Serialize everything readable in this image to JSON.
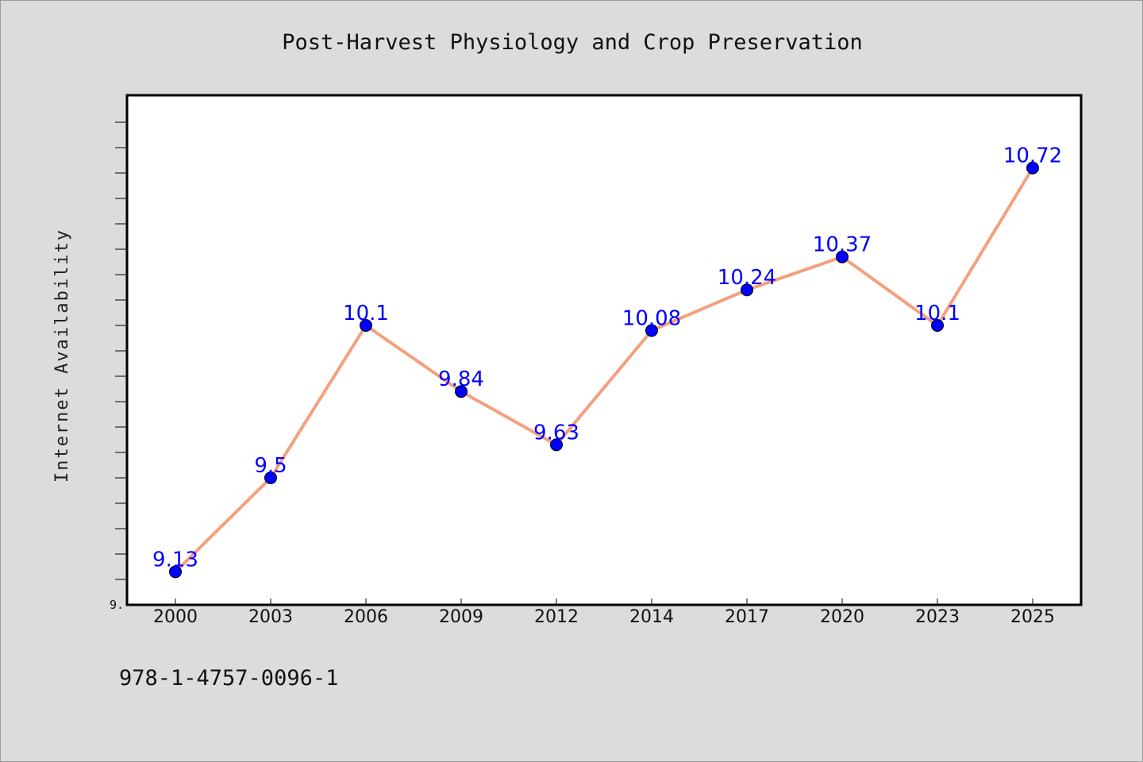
{
  "chart_data": {
    "type": "line",
    "title": "Post-Harvest Physiology and Crop Preservation",
    "ylabel": "Internet Availability",
    "xlabel": "",
    "categories": [
      "2000",
      "2003",
      "2006",
      "2009",
      "2012",
      "2014",
      "2017",
      "2020",
      "2023",
      "2025"
    ],
    "series": [
      {
        "values": [
          9.13,
          9.5,
          10.1,
          9.84,
          9.63,
          10.08,
          10.24,
          10.37,
          10.1,
          10.72
        ],
        "labels": [
          "9.13",
          "9.5",
          "10.1",
          "9.84",
          "9.63",
          "10.08",
          "10.24",
          "10.37",
          "10.1",
          "10.72"
        ],
        "line_color": "#f4a07e",
        "marker_color": "#0000ff",
        "label_color": "#0000ff"
      }
    ],
    "ylim": [
      9.0,
      11.0
    ],
    "ytick_labels": [
      {
        "value": 9.0,
        "label": "9."
      }
    ],
    "grid": false
  },
  "footer": {
    "isbn": "978-1-4757-0096-1"
  },
  "colors": {
    "background": "#dcdcdc",
    "plot_background": "#ffffff",
    "axis": "#000000"
  }
}
